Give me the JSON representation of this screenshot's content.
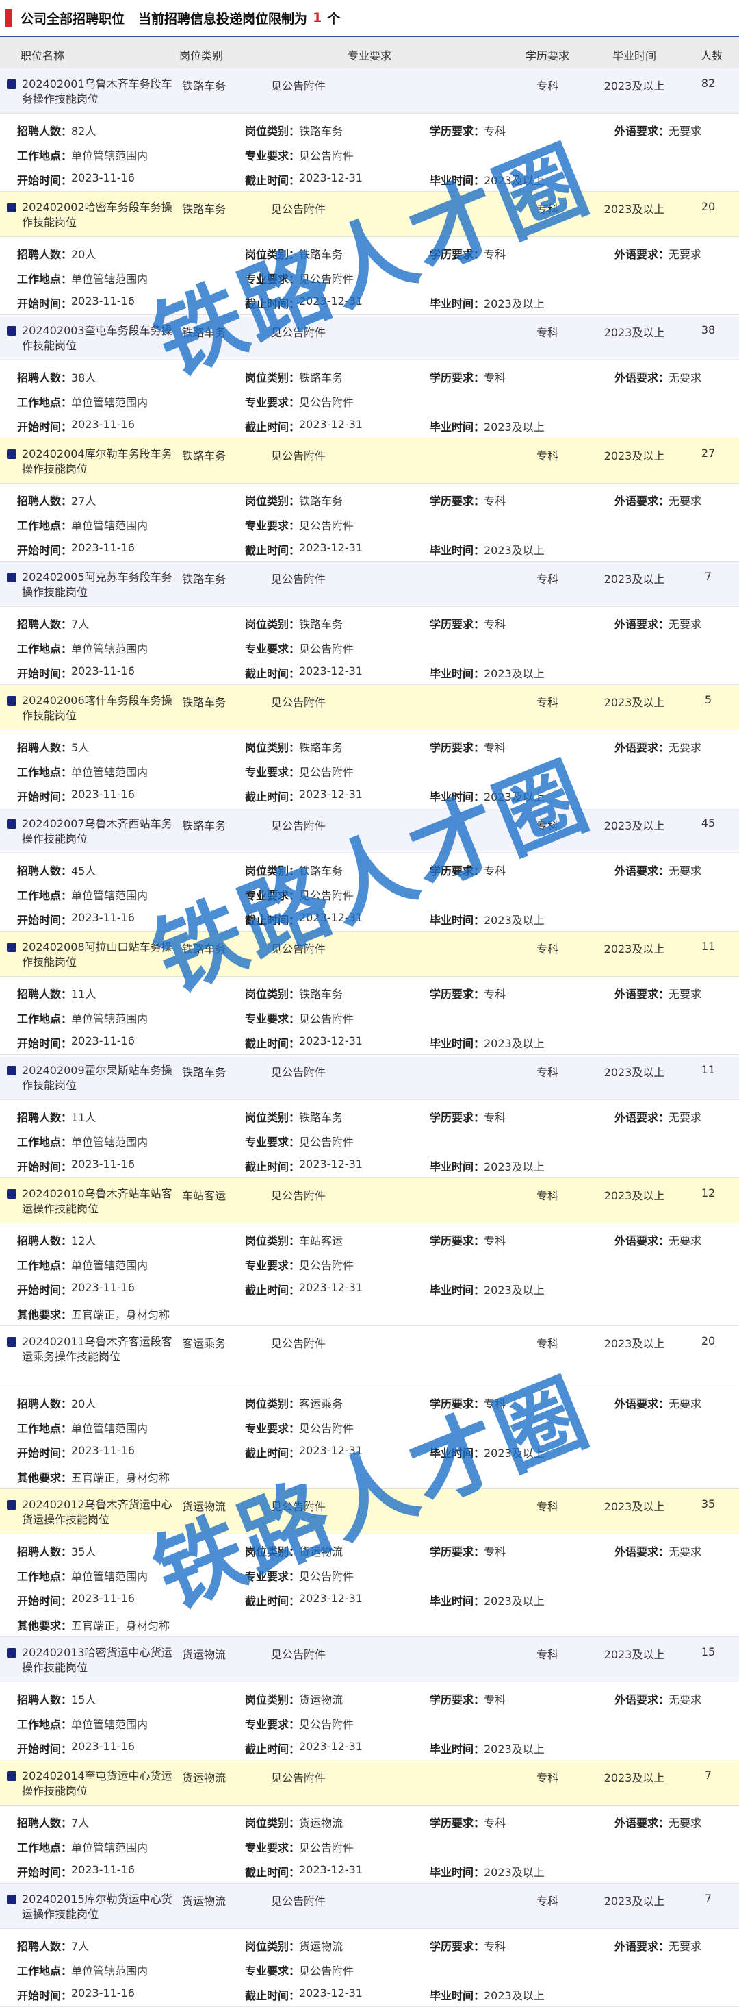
{
  "header": {
    "title": "公司全部招聘职位",
    "notice": "当前招聘信息投递岗位限制为",
    "limit": "1",
    "unit": "个"
  },
  "columns": [
    "职位名称",
    "岗位类别",
    "专业要求",
    "学历要求",
    "毕业时间",
    "人数"
  ],
  "labels": {
    "count": "招聘人数：",
    "category": "岗位类别：",
    "education": "学历要求：",
    "language": "外语要求：",
    "location": "工作地点：",
    "major": "专业要求：",
    "start": "开始时间：",
    "end": "截止时间：",
    "grad": "毕业时间：",
    "other": "其他要求："
  },
  "common": {
    "major": "见公告附件",
    "education": "专科",
    "grad": "2023及以上",
    "language": "无要求",
    "location": "单位管辖范围内",
    "start": "2023-11-16",
    "end": "2023-12-31"
  },
  "rows": [
    {
      "name": "202402001乌鲁木齐车务段车务操作技能岗位",
      "category": "铁路车务",
      "count": 82,
      "count_label": "82人"
    },
    {
      "name": "202402002哈密车务段车务操作技能岗位",
      "category": "铁路车务",
      "count": 20,
      "count_label": "20人"
    },
    {
      "name": "202402003奎屯车务段车务操作技能岗位",
      "category": "铁路车务",
      "count": 38,
      "count_label": "38人"
    },
    {
      "name": "202402004库尔勒车务段车务操作技能岗位",
      "category": "铁路车务",
      "count": 27,
      "count_label": "27人"
    },
    {
      "name": "202402005阿克苏车务段车务操作技能岗位",
      "category": "铁路车务",
      "count": 7,
      "count_label": "7人"
    },
    {
      "name": "202402006喀什车务段车务操作技能岗位",
      "category": "铁路车务",
      "count": 5,
      "count_label": "5人"
    },
    {
      "name": "202402007乌鲁木齐西站车务操作技能岗位",
      "category": "铁路车务",
      "count": 45,
      "count_label": "45人"
    },
    {
      "name": "202402008阿拉山口站车务操作技能岗位",
      "category": "铁路车务",
      "count": 11,
      "count_label": "11人"
    },
    {
      "name": "202402009霍尔果斯站车务操作技能岗位",
      "category": "铁路车务",
      "count": 11,
      "count_label": "11人"
    },
    {
      "name": "202402010乌鲁木齐站车站客运操作技能岗位",
      "category": "车站客运",
      "count": 12,
      "count_label": "12人",
      "other": "五官端正，身材匀称"
    },
    {
      "name": "202402011乌鲁木齐客运段客运乘务操作技能岗位",
      "category": "客运乘务",
      "count": 20,
      "count_label": "20人",
      "other": "五官端正，身材匀称"
    },
    {
      "name": "202402012乌鲁木齐货运中心货运操作技能岗位",
      "category": "货运物流",
      "count": 35,
      "count_label": "35人",
      "other": "五官端正，身材匀称"
    },
    {
      "name": "202402013哈密货运中心货运操作技能岗位",
      "category": "货运物流",
      "count": 15,
      "count_label": "15人"
    },
    {
      "name": "202402014奎屯货运中心货运操作技能岗位",
      "category": "货运物流",
      "count": 7,
      "count_label": "7人"
    },
    {
      "name": "202402015库尔勒货运中心货运操作技能岗位",
      "category": "货运物流",
      "count": 7,
      "count_label": "7人"
    }
  ],
  "watermark": "铁路人才圈"
}
